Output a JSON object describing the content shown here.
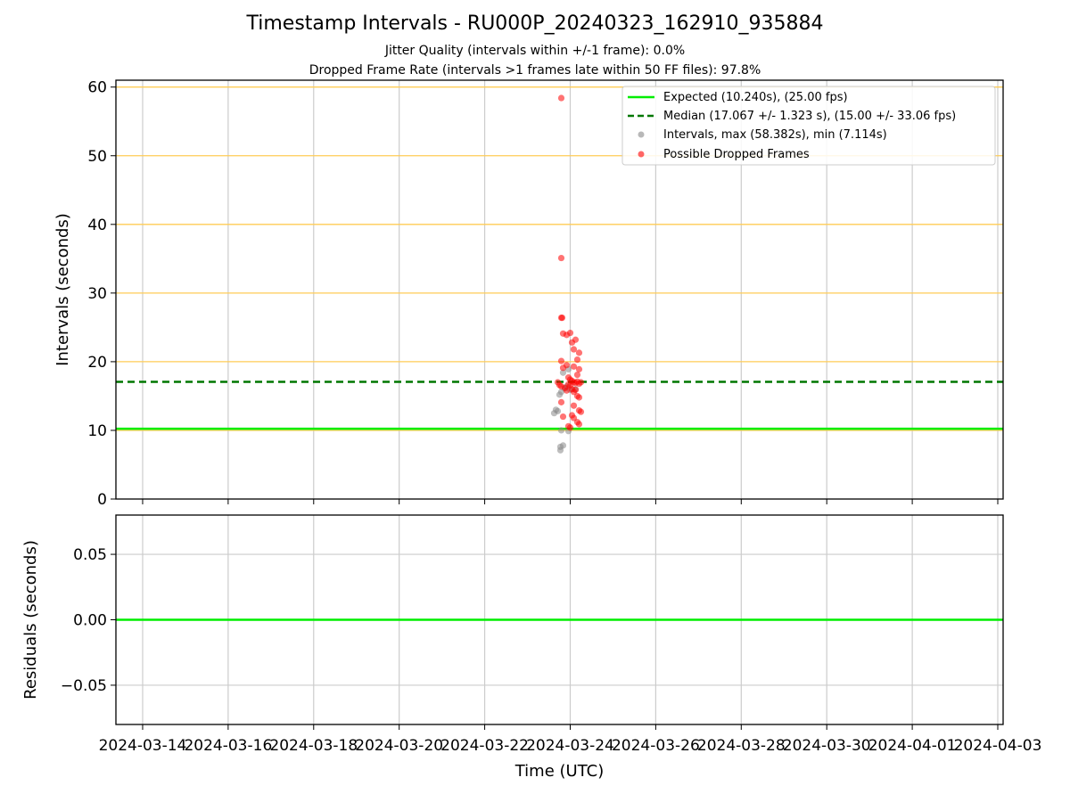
{
  "chart_data": [
    {
      "type": "scatter",
      "title": "Timestamp Intervals - RU000P_20240323_162910_935884",
      "subtitles": [
        "Jitter Quality (intervals within +/-1 frame): 0.0%",
        "Dropped Frame Rate (intervals >1 frames late within 50 FF files): 97.8%"
      ],
      "xlabel": "",
      "ylabel": "Intervals (seconds)",
      "ylim": [
        0,
        61
      ],
      "yticks": [
        "0",
        "10",
        "20",
        "30",
        "40",
        "50",
        "60"
      ],
      "xlim": [
        "2024-03-13T09:00",
        "2024-04-03T03:00"
      ],
      "grid": true,
      "legend_position": "top-right",
      "reference_lines": [
        {
          "name": "Expected (10.240s), (25.00 fps)",
          "y": 10.24,
          "style": "solid",
          "color": "#00ee00"
        },
        {
          "name": "Median (17.067 +/- 1.323 s), (15.00 +/- 33.06 fps)",
          "y": 17.067,
          "style": "dashed",
          "color": "#007700"
        }
      ],
      "horizontal_bands": [
        10,
        20,
        30,
        40,
        50,
        60
      ],
      "band_color": "#ffcc55",
      "series": [
        {
          "name": "Intervals, max (58.382s), min (7.114s)",
          "color": "#888888",
          "points": [
            [
              "2024-03-23T18:30",
              7.1
            ],
            [
              "2024-03-23T18:30",
              7.6
            ],
            [
              "2024-03-23T20:00",
              7.8
            ],
            [
              "2024-03-23T19:00",
              10.0
            ],
            [
              "2024-03-23T23:00",
              9.9
            ],
            [
              "2024-03-23T15:00",
              12.5
            ],
            [
              "2024-03-23T16:00",
              13.0
            ],
            [
              "2024-03-23T17:00",
              12.8
            ],
            [
              "2024-03-23T18:00",
              15.2
            ],
            [
              "2024-03-23T19:00",
              15.6
            ],
            [
              "2024-03-23T21:00",
              16.1
            ],
            [
              "2024-03-23T22:00",
              16.4
            ],
            [
              "2024-03-24T00:00",
              15.9
            ],
            [
              "2024-03-23T20:00",
              18.4
            ],
            [
              "2024-03-23T23:00",
              18.9
            ],
            [
              "2024-03-24T03:00",
              16.0
            ]
          ]
        },
        {
          "name": "Possible Dropped Frames",
          "color": "#ff0000",
          "points": [
            [
              "2024-03-23T19:00",
              58.4
            ],
            [
              "2024-03-23T19:00",
              35.1
            ],
            [
              "2024-03-23T19:00",
              26.4
            ],
            [
              "2024-03-23T19:30",
              26.4
            ],
            [
              "2024-03-23T20:00",
              24.1
            ],
            [
              "2024-03-24T00:00",
              24.2
            ],
            [
              "2024-03-23T22:00",
              23.9
            ],
            [
              "2024-03-24T01:00",
              22.8
            ],
            [
              "2024-03-24T03:00",
              23.2
            ],
            [
              "2024-03-24T02:00",
              21.8
            ],
            [
              "2024-03-24T05:00",
              21.3
            ],
            [
              "2024-03-24T04:00",
              20.3
            ],
            [
              "2024-03-23T19:00",
              20.1
            ],
            [
              "2024-03-23T22:00",
              19.5
            ],
            [
              "2024-03-24T02:00",
              19.3
            ],
            [
              "2024-03-23T20:00",
              19.1
            ],
            [
              "2024-03-24T05:00",
              18.9
            ],
            [
              "2024-03-24T04:00",
              18.1
            ],
            [
              "2024-03-23T23:00",
              17.7
            ],
            [
              "2024-03-24T00:00",
              17.4
            ],
            [
              "2024-03-24T01:00",
              17.2
            ],
            [
              "2024-03-24T02:00",
              17.0
            ],
            [
              "2024-03-24T03:00",
              16.9
            ],
            [
              "2024-03-24T04:00",
              17.1
            ],
            [
              "2024-03-24T05:00",
              16.8
            ],
            [
              "2024-03-24T06:00",
              17.0
            ],
            [
              "2024-03-23T17:00",
              17.0
            ],
            [
              "2024-03-23T18:00",
              16.6
            ],
            [
              "2024-03-23T19:00",
              16.4
            ],
            [
              "2024-03-23T21:00",
              16.2
            ],
            [
              "2024-03-23T22:00",
              15.8
            ],
            [
              "2024-03-23T23:00",
              16.7
            ],
            [
              "2024-03-24T00:00",
              16.5
            ],
            [
              "2024-03-24T01:00",
              16.0
            ],
            [
              "2024-03-24T02:00",
              15.6
            ],
            [
              "2024-03-24T03:00",
              15.9
            ],
            [
              "2024-03-24T04:00",
              15.0
            ],
            [
              "2024-03-24T05:00",
              14.8
            ],
            [
              "2024-03-23T19:00",
              14.1
            ],
            [
              "2024-03-24T02:00",
              13.6
            ],
            [
              "2024-03-24T05:00",
              12.9
            ],
            [
              "2024-03-24T06:00",
              12.7
            ],
            [
              "2024-03-24T01:00",
              12.2
            ],
            [
              "2024-03-23T20:00",
              12.0
            ],
            [
              "2024-03-24T02:00",
              11.8
            ],
            [
              "2024-03-24T04:00",
              11.2
            ],
            [
              "2024-03-24T05:00",
              10.9
            ],
            [
              "2024-03-23T23:00",
              10.6
            ],
            [
              "2024-03-24T00:00",
              10.4
            ]
          ]
        }
      ]
    },
    {
      "type": "line",
      "xlabel": "Time (UTC)",
      "ylabel": "Residuals (seconds)",
      "ylim": [
        -0.08,
        0.08
      ],
      "yticks": [
        "−0.05",
        "0.00",
        "0.05"
      ],
      "xlim": [
        "2024-03-13T09:00",
        "2024-04-03T03:00"
      ],
      "xticks": [
        "2024-03-14",
        "2024-03-16",
        "2024-03-18",
        "2024-03-20",
        "2024-03-22",
        "2024-03-24",
        "2024-03-26",
        "2024-03-28",
        "2024-03-30",
        "2024-04-01",
        "2024-04-03"
      ],
      "grid": true,
      "reference_lines": [
        {
          "name": "",
          "y": 0.0,
          "style": "solid",
          "color": "#00ee00"
        }
      ]
    }
  ]
}
